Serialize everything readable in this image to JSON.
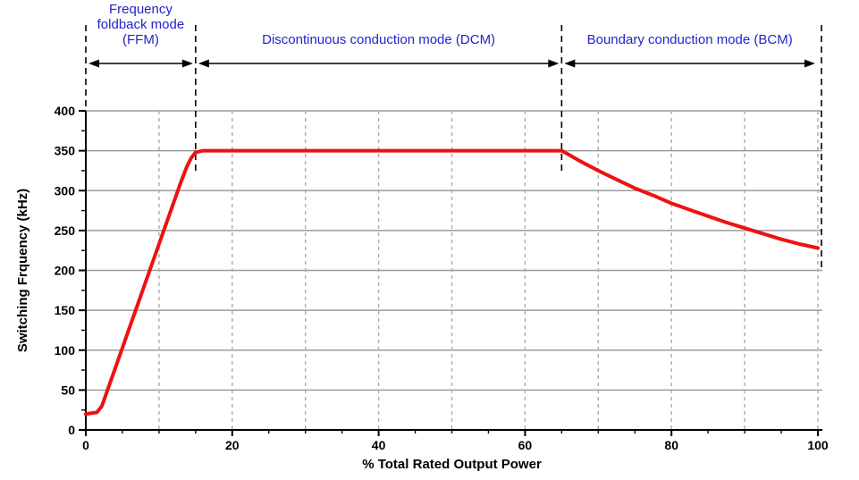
{
  "chart_data": {
    "type": "line",
    "title": "",
    "xlabel": "% Total Rated Output Power",
    "ylabel": "Switching Frquency (kHz)",
    "xlim": [
      0,
      100
    ],
    "ylim": [
      0,
      400
    ],
    "x_major_ticks": [
      0,
      20,
      40,
      60,
      80,
      100
    ],
    "x_minor_tick_step": 5,
    "x_gridline_step": 10,
    "y_major_ticks": [
      0,
      50,
      100,
      150,
      200,
      250,
      300,
      350,
      400
    ],
    "y_minor_tick_step": 25,
    "grid": {
      "horizontal": "solid",
      "vertical": "dashed"
    },
    "colors": {
      "curve": "#EE1111",
      "region_label": "#2323CC",
      "solid_grid": "#9C9C9C",
      "dashed_grid": "#ABABAB",
      "axis": "#000000"
    },
    "series": [
      {
        "name": "switching-frequency",
        "color": "#EE1111",
        "points": [
          [
            0,
            20
          ],
          [
            1.5,
            22
          ],
          [
            2.2,
            30
          ],
          [
            4,
            77
          ],
          [
            6,
            129
          ],
          [
            8,
            181
          ],
          [
            10,
            233
          ],
          [
            12,
            285
          ],
          [
            13,
            311
          ],
          [
            13.8,
            330
          ],
          [
            14.4,
            341
          ],
          [
            15,
            348
          ],
          [
            16,
            350
          ],
          [
            65,
            350
          ],
          [
            66,
            345
          ],
          [
            67.5,
            337
          ],
          [
            70,
            325
          ],
          [
            72.5,
            314
          ],
          [
            75,
            303
          ],
          [
            77.5,
            294
          ],
          [
            80,
            284
          ],
          [
            82.5,
            276
          ],
          [
            85,
            268
          ],
          [
            87.5,
            260
          ],
          [
            90,
            253
          ],
          [
            92.5,
            246
          ],
          [
            95,
            239
          ],
          [
            97.5,
            233
          ],
          [
            100,
            228
          ]
        ]
      }
    ],
    "regions": [
      {
        "name": "ffm",
        "label_lines": [
          "Frequency",
          "foldback mode",
          "(FFM)"
        ],
        "x_start": 0,
        "x_end": 15
      },
      {
        "name": "dcm",
        "label_lines": [
          "Discontinuous conduction mode (DCM)"
        ],
        "x_start": 15,
        "x_end": 65
      },
      {
        "name": "bcm",
        "label_lines": [
          "Boundary conduction mode (BCM)"
        ],
        "x_start": 65,
        "x_end": 100
      }
    ],
    "boundary_lines": [
      {
        "x": 0,
        "drops_to_kHz": 400
      },
      {
        "x": 15,
        "drops_to_kHz": 322
      },
      {
        "x": 65,
        "drops_to_kHz": 322
      },
      {
        "x": 100,
        "drops_to_kHz": 200
      }
    ]
  }
}
